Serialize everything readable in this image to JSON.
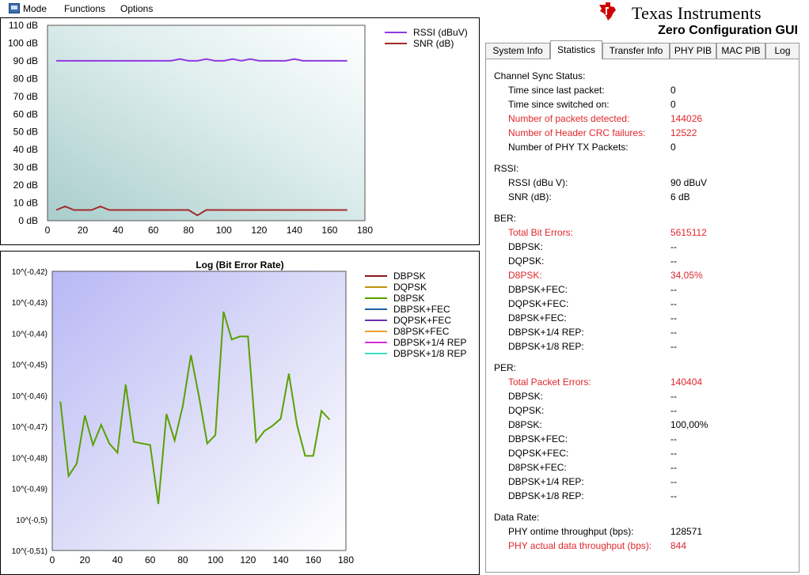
{
  "menu": [
    "Mode",
    "Functions",
    "Options"
  ],
  "brand": {
    "name": "Texas Instruments",
    "app_title": "Zero Configuration GUI"
  },
  "tabs": [
    "System Info",
    "Statistics",
    "Transfer Info",
    "PHY PIB",
    "MAC PIB",
    "Log"
  ],
  "active_tab": "Statistics",
  "stats": [
    {
      "type": "header",
      "label": "Channel Sync Status:"
    },
    {
      "type": "row",
      "label": "Time since last packet:",
      "value": "0",
      "highlight": false
    },
    {
      "type": "row",
      "label": "Time since switched on:",
      "value": "0",
      "highlight": false
    },
    {
      "type": "row",
      "label": "Number of packets detected:",
      "value": "144026",
      "highlight": true
    },
    {
      "type": "row",
      "label": "Number of Header CRC failures:",
      "value": "12522",
      "highlight": true
    },
    {
      "type": "row",
      "label": "Number of PHY TX Packets:",
      "value": "0",
      "highlight": false
    },
    {
      "type": "header",
      "label": "RSSI:"
    },
    {
      "type": "row",
      "label": "RSSI (dBu V):",
      "value": "90 dBuV",
      "highlight": false
    },
    {
      "type": "row",
      "label": "SNR (dB):",
      "value": "6 dB",
      "highlight": false
    },
    {
      "type": "header",
      "label": "BER:"
    },
    {
      "type": "row",
      "label": "Total Bit Errors:",
      "value": "5615112",
      "highlight": true
    },
    {
      "type": "row",
      "label": "DBPSK:",
      "value": "--",
      "highlight": false
    },
    {
      "type": "row",
      "label": "DQPSK:",
      "value": "--",
      "highlight": false
    },
    {
      "type": "row",
      "label": "D8PSK:",
      "value": "34,05%",
      "highlight": true
    },
    {
      "type": "row",
      "label": "DBPSK+FEC:",
      "value": "--",
      "highlight": false
    },
    {
      "type": "row",
      "label": "DQPSK+FEC:",
      "value": "--",
      "highlight": false
    },
    {
      "type": "row",
      "label": "D8PSK+FEC:",
      "value": "--",
      "highlight": false
    },
    {
      "type": "row",
      "label": "DBPSK+1/4 REP:",
      "value": "--",
      "highlight": false
    },
    {
      "type": "row",
      "label": "DBPSK+1/8 REP:",
      "value": "--",
      "highlight": false
    },
    {
      "type": "header",
      "label": "PER:"
    },
    {
      "type": "row",
      "label": "Total Packet Errors:",
      "value": "140404",
      "highlight": true
    },
    {
      "type": "row",
      "label": "DBPSK:",
      "value": "--",
      "highlight": false
    },
    {
      "type": "row",
      "label": "DQPSK:",
      "value": "--",
      "highlight": false
    },
    {
      "type": "row",
      "label": "D8PSK:",
      "value": "100,00%",
      "highlight": false
    },
    {
      "type": "row",
      "label": "DBPSK+FEC:",
      "value": "--",
      "highlight": false
    },
    {
      "type": "row",
      "label": "DQPSK+FEC:",
      "value": "--",
      "highlight": false
    },
    {
      "type": "row",
      "label": "D8PSK+FEC:",
      "value": "--",
      "highlight": false
    },
    {
      "type": "row",
      "label": "DBPSK+1/4 REP:",
      "value": "--",
      "highlight": false
    },
    {
      "type": "row",
      "label": "DBPSK+1/8 REP:",
      "value": "--",
      "highlight": false
    },
    {
      "type": "header",
      "label": "Data Rate:"
    },
    {
      "type": "row",
      "label": "PHY ontime throughput (bps):",
      "value": "128571",
      "highlight": false
    },
    {
      "type": "row",
      "label": "PHY actual data throughput (bps):",
      "value": "844",
      "highlight": true
    }
  ],
  "colors": {
    "accent_red": "#e0272d",
    "rssi": "#8f3ae0",
    "snr": "#a52a2a",
    "d8psk": "#5aa000"
  },
  "chart_data": [
    {
      "type": "line",
      "title": "",
      "xlim": [
        0,
        180
      ],
      "ylim": [
        0,
        110
      ],
      "x_ticks": [
        0,
        20,
        40,
        60,
        80,
        100,
        120,
        140,
        160,
        180
      ],
      "y_ticks": [
        0,
        10,
        20,
        30,
        40,
        50,
        60,
        70,
        80,
        90,
        100,
        110
      ],
      "y_tick_labels": [
        "0 dB",
        "10 dB",
        "20 dB",
        "30 dB",
        "40 dB",
        "50 dB",
        "60 dB",
        "70 dB",
        "80 dB",
        "90 dB",
        "100 dB",
        "110 dB"
      ],
      "legend": "top-right",
      "series": [
        {
          "name": "RSSI (dBuV)",
          "color": "#8f3ae0",
          "x": [
            5,
            70,
            75,
            80,
            85,
            90,
            95,
            100,
            105,
            110,
            115,
            120,
            125,
            130,
            135,
            140,
            145,
            150,
            155,
            160,
            165,
            170
          ],
          "y": [
            90,
            90,
            91,
            90,
            90,
            91,
            90,
            90,
            91,
            90,
            91,
            90,
            90,
            90,
            90,
            91,
            90,
            90,
            90,
            90,
            90,
            90
          ]
        },
        {
          "name": "SNR (dB)",
          "color": "#a52a2a",
          "x": [
            5,
            10,
            15,
            20,
            25,
            30,
            35,
            40,
            45,
            50,
            55,
            60,
            65,
            70,
            75,
            80,
            85,
            90,
            95,
            100,
            105,
            110,
            115,
            120,
            125,
            130,
            135,
            140,
            145,
            150,
            155,
            160,
            165,
            170
          ],
          "y": [
            6,
            8,
            6,
            6,
            6,
            8,
            6,
            6,
            6,
            6,
            6,
            6,
            6,
            6,
            6,
            6,
            3,
            6,
            6,
            6,
            6,
            6,
            6,
            6,
            6,
            6,
            6,
            6,
            6,
            6,
            6,
            6,
            6,
            6
          ]
        }
      ]
    },
    {
      "type": "line",
      "title": "Log (Bit Error Rate)",
      "xlim": [
        0,
        180
      ],
      "ylim": [
        -0.51,
        -0.42
      ],
      "x_ticks": [
        0,
        20,
        40,
        60,
        80,
        100,
        120,
        140,
        160,
        180
      ],
      "y_ticks": [
        -0.42,
        -0.43,
        -0.44,
        -0.45,
        -0.46,
        -0.47,
        -0.48,
        -0.49,
        -0.5,
        -0.51
      ],
      "y_tick_labels": [
        "10^(-0,42)",
        "10^(-0,43)",
        "10^(-0,44)",
        "10^(-0,45)",
        "10^(-0,46)",
        "10^(-0,47)",
        "10^(-0,48)",
        "10^(-0,49)",
        "10^(-0,5)",
        "10^(-0,51)"
      ],
      "legend": "right",
      "series": [
        {
          "name": "DBPSK",
          "color": "#8b1a1a",
          "x": [],
          "y": []
        },
        {
          "name": "DQPSK",
          "color": "#b8960a",
          "x": [],
          "y": []
        },
        {
          "name": "D8PSK",
          "color": "#5aa000",
          "x": [
            5,
            10,
            15,
            20,
            25,
            30,
            35,
            40,
            45,
            50,
            55,
            60,
            65,
            70,
            75,
            80,
            85,
            90,
            95,
            100,
            105,
            110,
            115,
            120,
            125,
            130,
            135,
            140,
            145,
            150,
            155,
            160,
            165,
            170
          ],
          "y": [
            -0.462,
            -0.486,
            -0.482,
            -0.4665,
            -0.476,
            -0.4695,
            -0.4755,
            -0.4785,
            -0.4565,
            -0.475,
            -0.4755,
            -0.476,
            -0.495,
            -0.466,
            -0.4745,
            -0.4635,
            -0.447,
            -0.4605,
            -0.4755,
            -0.4728,
            -0.433,
            -0.442,
            -0.441,
            -0.441,
            -0.475,
            -0.4715,
            -0.4698,
            -0.4675,
            -0.453,
            -0.4695,
            -0.4795,
            -0.4795,
            -0.465,
            -0.4678
          ]
        },
        {
          "name": "DBPSK+FEC",
          "color": "#1f5fa6",
          "x": [],
          "y": []
        },
        {
          "name": "DQPSK+FEC",
          "color": "#6a2fb0",
          "x": [],
          "y": []
        },
        {
          "name": "D8PSK+FEC",
          "color": "#f0a030",
          "x": [],
          "y": []
        },
        {
          "name": "DBPSK+1/4 REP",
          "color": "#d62bd6",
          "x": [],
          "y": []
        },
        {
          "name": "DBPSK+1/8 REP",
          "color": "#3ce0c8",
          "x": [],
          "y": []
        }
      ]
    }
  ]
}
